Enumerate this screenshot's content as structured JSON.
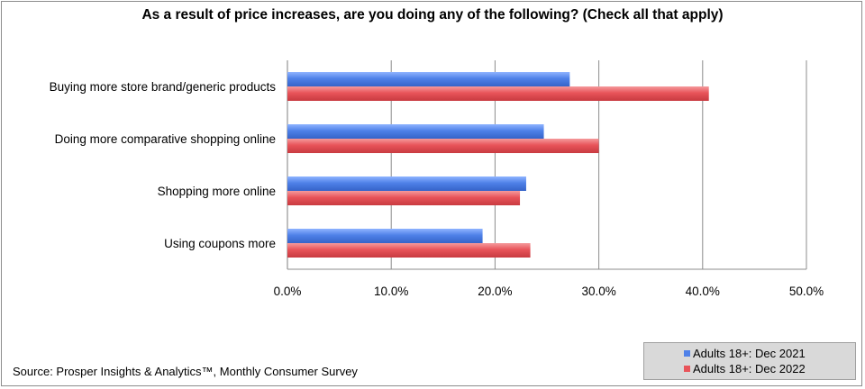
{
  "chart_data": {
    "type": "bar",
    "orientation": "horizontal",
    "title": "As a result of price increases, are you doing any of the following? (Check all that apply)",
    "categories": [
      "Buying more store brand/generic products",
      "Doing more comparative shopping online",
      "Shopping more online",
      "Using coupons more"
    ],
    "series": [
      {
        "name": "Adults 18+: Dec 2021",
        "values": [
          27.2,
          24.7,
          23.0,
          18.8
        ],
        "color": "#4f81e8"
      },
      {
        "name": "Adults 18+: Dec 2022",
        "values": [
          40.6,
          30.0,
          22.4,
          23.4
        ],
        "color": "#e8545a"
      }
    ],
    "xlim": [
      0,
      50
    ],
    "xticks": [
      "0.0%",
      "10.0%",
      "20.0%",
      "30.0%",
      "40.0%",
      "50.0%"
    ],
    "grid": "vertical",
    "legend_position": "bottom-right"
  },
  "source": "Source: Prosper Insights & Analytics™, Monthly Consumer Survey"
}
